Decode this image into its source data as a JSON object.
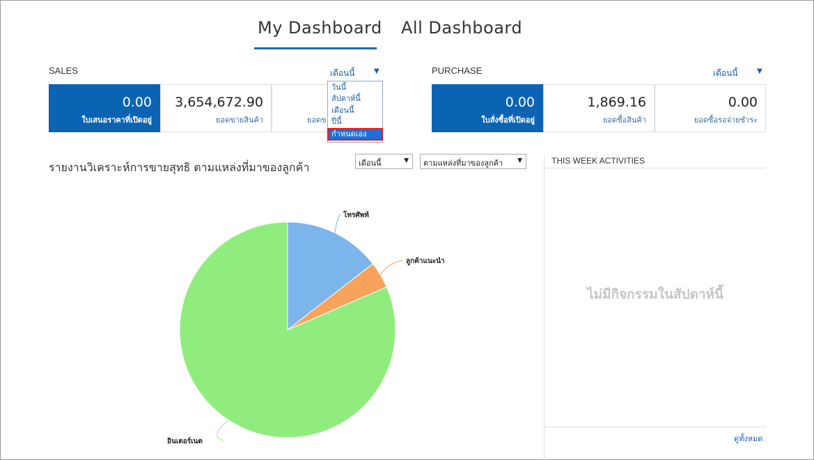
{
  "tabs": {
    "my": "My Dashboard",
    "all": "All Dashboard"
  },
  "sales": {
    "title": "SALES",
    "period": "เดือนนี้",
    "kpis": [
      {
        "value": "0.00",
        "label": "ใบเสนอราคาที่เปิดอยู่"
      },
      {
        "value": "3,654,672.90",
        "label": "ยอดขายสินค้า"
      },
      {
        "value": "",
        "label": "ยอดข"
      }
    ],
    "dropdown_options": [
      "วันนี้",
      "สัปดาห์นี้",
      "เดือนนี้",
      "ปีนี้",
      "กำหนดเอง"
    ]
  },
  "purchase": {
    "title": "PURCHASE",
    "period": "เดือนนี้",
    "kpis": [
      {
        "value": "0.00",
        "label": "ใบสั่งซื้อที่เปิดอยู่"
      },
      {
        "value": "1,869.16",
        "label": "ยอดซื้อสินค้า"
      },
      {
        "value": "0.00",
        "label": "ยอดซื้อรอจ่ายชำระ"
      }
    ]
  },
  "report": {
    "title": "รายงานวิเคราะห์การขายสุทธิ ตามแหล่งที่มาของลูกค้า",
    "period_select": "เดือนนี้",
    "group_select": "ตามแหล่งที่มาของลูกค้า"
  },
  "activities": {
    "title": "THIS WEEK ACTIVITIES",
    "empty_text": "ไม่มีกิจกรรมในสัปดาห์นี้",
    "view_all": "ดูทั้งหมด"
  },
  "chart_data": {
    "type": "pie",
    "categories": [
      "โทรศัพท์",
      "ลูกค้าแนะนำ",
      "อินเตอร์เนต"
    ],
    "values": [
      14.5,
      4.0,
      81.5
    ],
    "colors": [
      "#7cb5ec",
      "#f7a35c",
      "#90ed7d"
    ]
  }
}
